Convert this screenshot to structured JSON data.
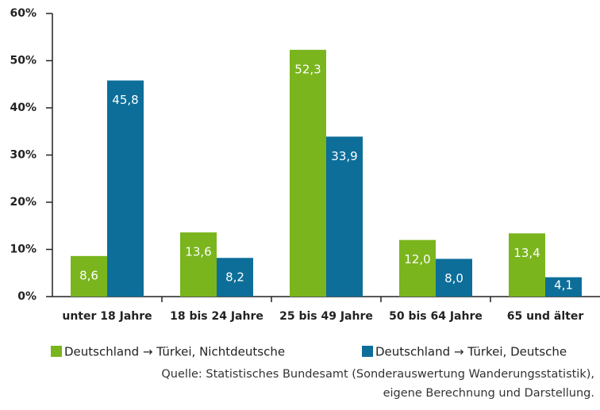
{
  "chart_data": {
    "type": "bar",
    "categories": [
      "unter 18 Jahre",
      "18 bis 24 Jahre",
      "25 bis 49 Jahre",
      "50 bis 64 Jahre",
      "65 und älter"
    ],
    "series": [
      {
        "name": "Deutschland → Türkei, Nichtdeutsche",
        "color": "#7ab51d",
        "values": [
          8.6,
          13.6,
          52.3,
          12.0,
          13.4
        ],
        "value_labels": [
          "8,6",
          "13,6",
          "52,3",
          "12,0",
          "13,4"
        ]
      },
      {
        "name": "Deutschland → Türkei, Deutsche",
        "color": "#0d6e9a",
        "values": [
          45.8,
          8.2,
          33.9,
          8.0,
          4.1
        ],
        "value_labels": [
          "45,8",
          "8,2",
          "33,9",
          "8,0",
          "4,1"
        ]
      }
    ],
    "ylim": [
      0,
      60
    ],
    "yticks": [
      {
        "value": 0,
        "label": "0%"
      },
      {
        "value": 10,
        "label": "10%"
      },
      {
        "value": 20,
        "label": "20%"
      },
      {
        "value": 30,
        "label": "30%"
      },
      {
        "value": 40,
        "label": "40%"
      },
      {
        "value": 50,
        "label": "50%"
      },
      {
        "value": 60,
        "label": "60%"
      }
    ],
    "grid": false,
    "source": [
      "Quelle: Statistisches Bundesamt (Sonderauswertung Wanderungsstatistik),",
      "eigene Berechnung und Darstellung."
    ]
  }
}
